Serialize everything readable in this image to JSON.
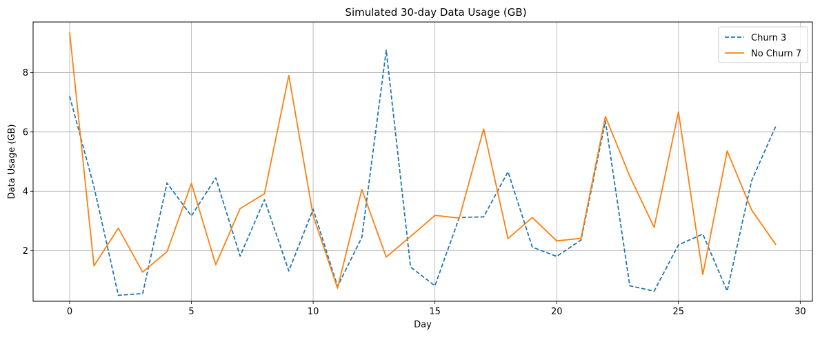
{
  "chart_data": {
    "type": "line",
    "title": "Simulated 30-day Data Usage (GB)",
    "xlabel": "Day",
    "ylabel": "Data Usage (GB)",
    "xlim": [
      -1.5,
      30.5
    ],
    "ylim": [
      0.3,
      9.7
    ],
    "xticks": [
      0,
      5,
      10,
      15,
      20,
      25,
      30
    ],
    "yticks": [
      2,
      4,
      6,
      8
    ],
    "grid": true,
    "legend_position": "top-right",
    "x": [
      0,
      1,
      2,
      3,
      4,
      5,
      6,
      7,
      8,
      9,
      10,
      11,
      12,
      13,
      14,
      15,
      16,
      17,
      18,
      19,
      20,
      21,
      22,
      23,
      24,
      25,
      26,
      27,
      28,
      29
    ],
    "series": [
      {
        "name": "Churn 3",
        "color": "#1f77b4",
        "dash": "dashed",
        "values": [
          7.2,
          4.15,
          0.5,
          0.56,
          4.28,
          3.17,
          4.45,
          1.82,
          3.72,
          1.32,
          3.4,
          0.8,
          2.45,
          8.75,
          1.45,
          0.82,
          3.12,
          3.14,
          4.66,
          2.12,
          1.81,
          2.36,
          6.37,
          0.82,
          0.64,
          2.2,
          2.56,
          0.64,
          4.35,
          6.2
        ]
      },
      {
        "name": "No Churn 7",
        "color": "#ff7f0e",
        "dash": "solid",
        "values": [
          9.35,
          1.49,
          2.76,
          1.28,
          1.97,
          4.27,
          1.53,
          3.42,
          3.92,
          7.9,
          3.18,
          0.74,
          4.06,
          1.79,
          2.48,
          3.19,
          3.1,
          6.1,
          2.41,
          3.12,
          2.33,
          2.42,
          6.52,
          4.51,
          2.79,
          6.67,
          1.2,
          5.36,
          3.38,
          2.2
        ]
      }
    ]
  }
}
